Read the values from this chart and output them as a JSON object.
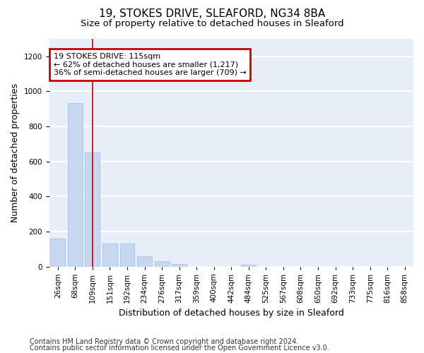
{
  "title": "19, STOKES DRIVE, SLEAFORD, NG34 8BA",
  "subtitle": "Size of property relative to detached houses in Sleaford",
  "xlabel": "Distribution of detached houses by size in Sleaford",
  "ylabel": "Number of detached properties",
  "footnote1": "Contains HM Land Registry data © Crown copyright and database right 2024.",
  "footnote2": "Contains public sector information licensed under the Open Government Licence v3.0.",
  "bin_labels": [
    "26sqm",
    "68sqm",
    "109sqm",
    "151sqm",
    "192sqm",
    "234sqm",
    "276sqm",
    "317sqm",
    "359sqm",
    "400sqm",
    "442sqm",
    "484sqm",
    "525sqm",
    "567sqm",
    "608sqm",
    "650sqm",
    "692sqm",
    "733sqm",
    "775sqm",
    "816sqm",
    "858sqm"
  ],
  "bar_heights": [
    160,
    935,
    650,
    130,
    130,
    60,
    30,
    15,
    0,
    0,
    0,
    10,
    0,
    0,
    0,
    0,
    0,
    0,
    0,
    0,
    0
  ],
  "bar_color": "#c5d8f0",
  "bar_edgecolor": "#9bbde0",
  "highlight_index": 2,
  "highlight_line_color": "#cc0000",
  "annotation_text": "19 STOKES DRIVE: 115sqm\n← 62% of detached houses are smaller (1,217)\n36% of semi-detached houses are larger (709) →",
  "annotation_box_edgecolor": "#cc0000",
  "ylim": [
    0,
    1300
  ],
  "yticks": [
    0,
    200,
    400,
    600,
    800,
    1000,
    1200
  ],
  "bg_color": "#e8eef7",
  "grid_color": "#ffffff",
  "title_fontsize": 11,
  "subtitle_fontsize": 9.5,
  "axis_label_fontsize": 9,
  "tick_fontsize": 7.5,
  "footnote_fontsize": 7,
  "annotation_fontsize": 8
}
